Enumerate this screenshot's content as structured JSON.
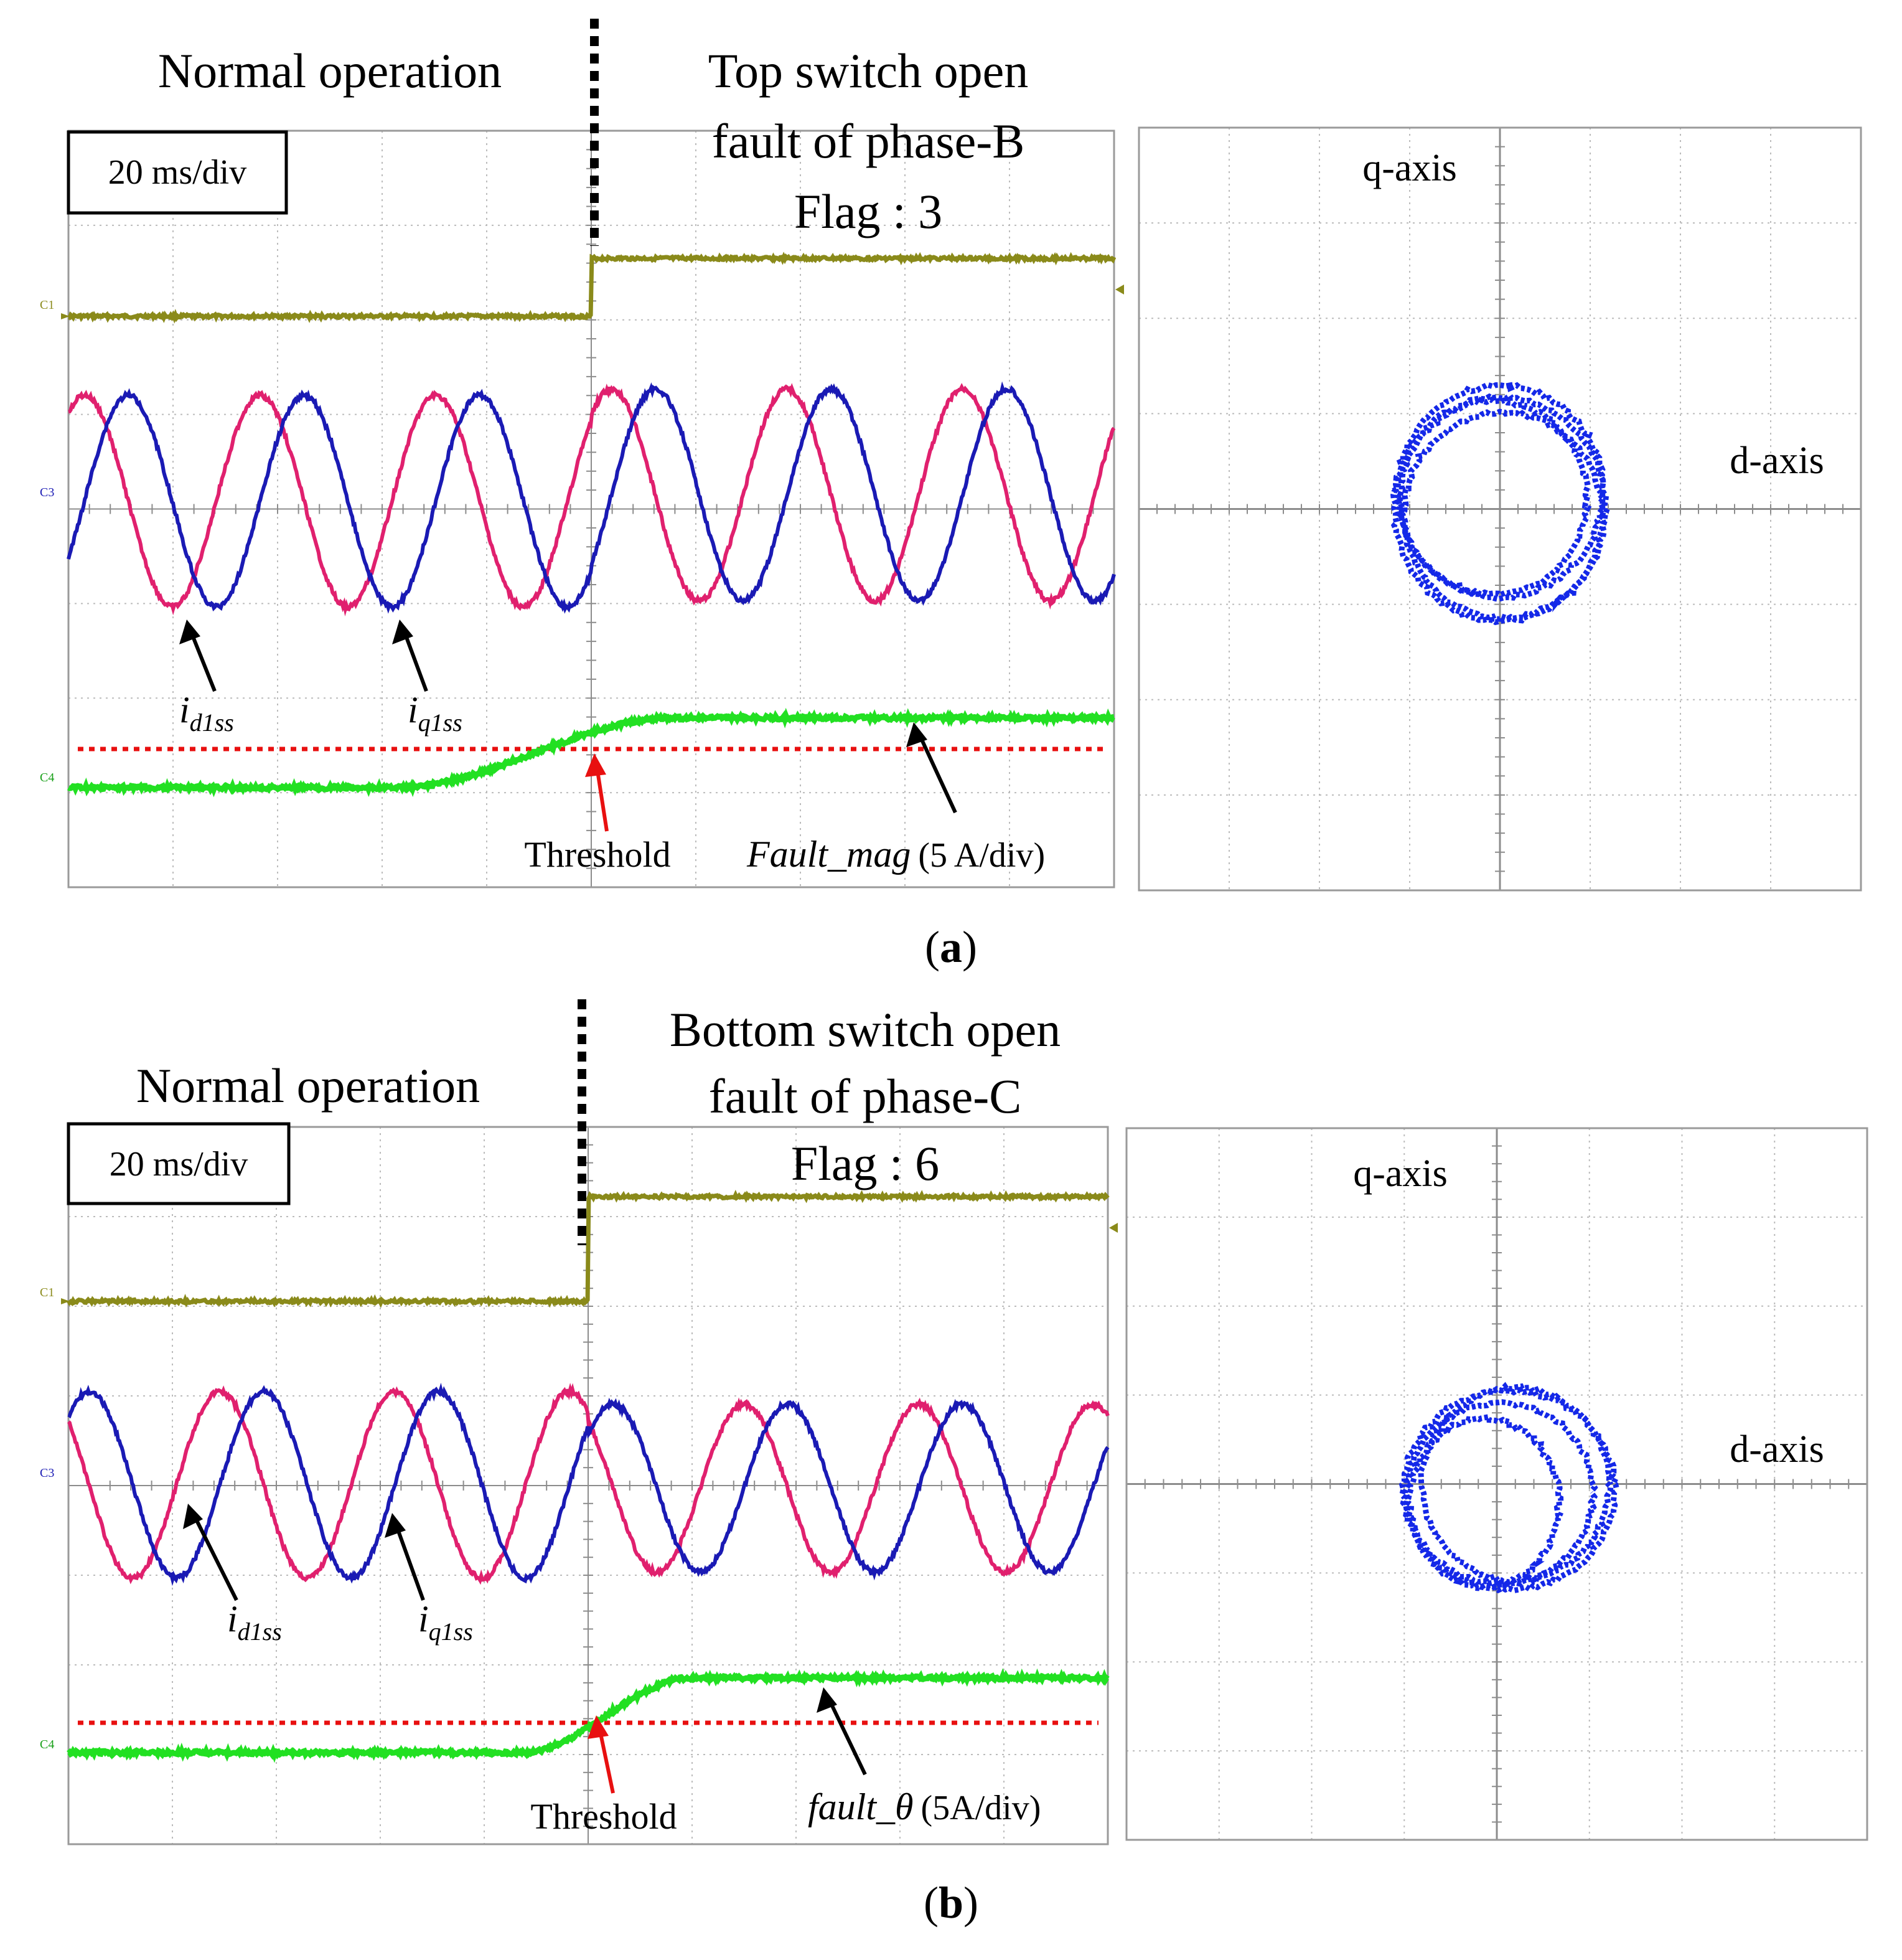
{
  "colors": {
    "flag": "#8a8a1a",
    "id1ss": "#e0206e",
    "iq1ss": "#1a1ab4",
    "fault": "#22e022",
    "threshold": "#e81010",
    "grid": "#bcbcbc",
    "frame": "#9a9a9a",
    "xy": "#1428e8"
  },
  "panels": [
    {
      "caption": "(a)",
      "caption_letter": "a",
      "time_scale": "20 ms/div",
      "normal_label": "Normal operation",
      "fault_title": [
        "Top switch open",
        "fault of phase-B",
        "Flag : 3"
      ],
      "ch_labels": [
        "C1",
        "C3",
        "C4"
      ],
      "current_labels": [
        {
          "base": "i",
          "sub": "d1ss"
        },
        {
          "base": "i",
          "sub": "q1ss"
        }
      ],
      "threshold_label": "Threshold",
      "fault_signal_label": "Fault_mag",
      "fault_signal_unit": "(5 A/div)",
      "xy_labels": {
        "q": "q-axis",
        "d": "d-axis"
      }
    },
    {
      "caption": "(b)",
      "caption_letter": "b",
      "time_scale": "20 ms/div",
      "normal_label": "Normal operation",
      "fault_title": [
        "Bottom switch open",
        "fault of phase-C",
        "Flag : 6"
      ],
      "ch_labels": [
        "C1",
        "C3",
        "C4"
      ],
      "current_labels": [
        {
          "base": "i",
          "sub": "d1ss"
        },
        {
          "base": "i",
          "sub": "q1ss"
        }
      ],
      "threshold_label": "Threshold",
      "fault_signal_label": "fault_θ",
      "fault_signal_unit": "(5A/div)",
      "xy_labels": {
        "q": "q-axis",
        "d": "d-axis"
      }
    }
  ],
  "chart_data": [
    {
      "type": "line",
      "title": "",
      "x_unit": "ms",
      "x_range_ms": [
        -100,
        100
      ],
      "fault_time_ms": 0,
      "grid": true,
      "series": [
        {
          "name": "Flag",
          "channel": "C1",
          "values_before": 0,
          "values_after": 3
        },
        {
          "name": "i_d1ss",
          "channel": "C3",
          "shape": "sinusoid",
          "period_ms": 33,
          "amplitude_div": 1.1
        },
        {
          "name": "i_q1ss",
          "channel": "C3",
          "shape": "sinusoid",
          "period_ms": 33,
          "amplitude_div": 1.1,
          "phase_lag_deg": 90
        },
        {
          "name": "Fault_mag",
          "channel": "C4",
          "unit": "5 A/div",
          "level_before_div": 0,
          "level_after_div": 0.75,
          "rise_start_ms": -40,
          "rise_end_ms": 25
        },
        {
          "name": "Threshold",
          "channel": "C4",
          "level_div": 0.4
        }
      ]
    },
    {
      "type": "scatter",
      "title": "",
      "xlabel": "d-axis",
      "ylabel": "q-axis",
      "shape": "current trajectory (shifted circle)",
      "grid": true
    },
    {
      "type": "line",
      "title": "",
      "x_unit": "ms",
      "x_range_ms": [
        -100,
        100
      ],
      "fault_time_ms": 0,
      "grid": true,
      "series": [
        {
          "name": "Flag",
          "channel": "C1",
          "values_before": 0,
          "values_after": 6
        },
        {
          "name": "i_d1ss",
          "channel": "C3",
          "shape": "sinusoid",
          "period_ms": 33,
          "amplitude_div": 1.0
        },
        {
          "name": "i_q1ss",
          "channel": "C3",
          "shape": "sinusoid",
          "period_ms": 33,
          "amplitude_div": 1.0,
          "phase_lag_deg": 90
        },
        {
          "name": "fault_θ",
          "channel": "C4",
          "unit": "5A/div",
          "level_before_div": 0,
          "level_after_div": 0.75,
          "rise_start_ms": -20,
          "rise_end_ms": 30
        },
        {
          "name": "Threshold",
          "channel": "C4",
          "level_div": 0.35
        }
      ]
    },
    {
      "type": "scatter",
      "title": "",
      "xlabel": "d-axis",
      "ylabel": "q-axis",
      "shape": "current trajectory (shifted circle)",
      "grid": true
    }
  ]
}
